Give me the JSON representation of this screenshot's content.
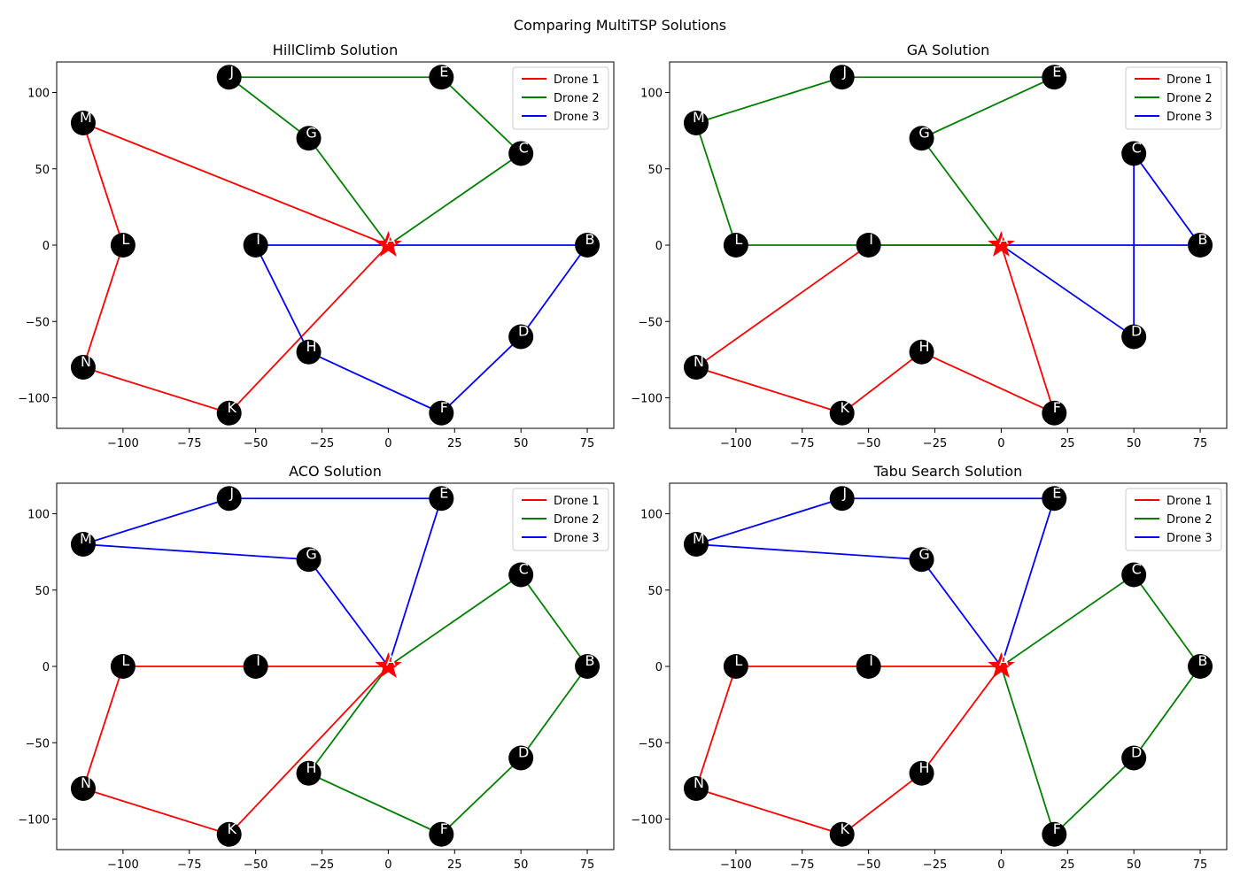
{
  "figure_title": "Comparing MultiTSP Solutions",
  "legend_labels": [
    "Drone 1",
    "Drone 2",
    "Drone 3"
  ],
  "colors": {
    "Drone 1": "#ff0000",
    "Drone 2": "#008000",
    "Drone 3": "#0000ff",
    "node": "#000000",
    "depot": "#ff0000",
    "node_label": "#ffffff"
  },
  "chart_data": [
    {
      "type": "scatter",
      "title": "HillClimb Solution",
      "xlabel": "",
      "ylabel": "",
      "xlim": [
        -125,
        85
      ],
      "ylim": [
        -120,
        120
      ],
      "xticks": [
        -100,
        -75,
        -50,
        -25,
        0,
        25,
        50,
        75
      ],
      "yticks": [
        -100,
        -50,
        0,
        50,
        100
      ],
      "legend_position": "top-right",
      "depot": "A",
      "nodes": [
        {
          "label": "A",
          "x": 0,
          "y": 0
        },
        {
          "label": "B",
          "x": 75,
          "y": 0
        },
        {
          "label": "C",
          "x": 50,
          "y": 60
        },
        {
          "label": "D",
          "x": 50,
          "y": -60
        },
        {
          "label": "E",
          "x": 20,
          "y": 110
        },
        {
          "label": "F",
          "x": 20,
          "y": -110
        },
        {
          "label": "G",
          "x": -30,
          "y": 70
        },
        {
          "label": "H",
          "x": -30,
          "y": -70
        },
        {
          "label": "I",
          "x": -50,
          "y": 0
        },
        {
          "label": "J",
          "x": -60,
          "y": 110
        },
        {
          "label": "K",
          "x": -60,
          "y": -110
        },
        {
          "label": "L",
          "x": -100,
          "y": 0
        },
        {
          "label": "M",
          "x": -115,
          "y": 80
        },
        {
          "label": "N",
          "x": -115,
          "y": -80
        }
      ],
      "routes": [
        {
          "name": "Drone 1",
          "path": [
            "A",
            "M",
            "L",
            "N",
            "K",
            "A"
          ]
        },
        {
          "name": "Drone 2",
          "path": [
            "A",
            "G",
            "J",
            "E",
            "C",
            "A"
          ]
        },
        {
          "name": "Drone 3",
          "path": [
            "A",
            "I",
            "H",
            "F",
            "D",
            "B",
            "A"
          ]
        }
      ]
    },
    {
      "type": "scatter",
      "title": "GA Solution",
      "xlabel": "",
      "ylabel": "",
      "xlim": [
        -125,
        85
      ],
      "ylim": [
        -120,
        120
      ],
      "xticks": [
        -100,
        -75,
        -50,
        -25,
        0,
        25,
        50,
        75
      ],
      "yticks": [
        -100,
        -50,
        0,
        50,
        100
      ],
      "legend_position": "top-right",
      "depot": "A",
      "nodes": [
        {
          "label": "A",
          "x": 0,
          "y": 0
        },
        {
          "label": "B",
          "x": 75,
          "y": 0
        },
        {
          "label": "C",
          "x": 50,
          "y": 60
        },
        {
          "label": "D",
          "x": 50,
          "y": -60
        },
        {
          "label": "E",
          "x": 20,
          "y": 110
        },
        {
          "label": "F",
          "x": 20,
          "y": -110
        },
        {
          "label": "G",
          "x": -30,
          "y": 70
        },
        {
          "label": "H",
          "x": -30,
          "y": -70
        },
        {
          "label": "I",
          "x": -50,
          "y": 0
        },
        {
          "label": "J",
          "x": -60,
          "y": 110
        },
        {
          "label": "K",
          "x": -60,
          "y": -110
        },
        {
          "label": "L",
          "x": -100,
          "y": 0
        },
        {
          "label": "M",
          "x": -115,
          "y": 80
        },
        {
          "label": "N",
          "x": -115,
          "y": -80
        }
      ],
      "routes": [
        {
          "name": "Drone 1",
          "path": [
            "A",
            "I",
            "N",
            "K",
            "H",
            "F",
            "A"
          ]
        },
        {
          "name": "Drone 2",
          "path": [
            "A",
            "G",
            "E",
            "J",
            "M",
            "L",
            "I",
            "A"
          ]
        },
        {
          "name": "Drone 3",
          "path": [
            "A",
            "B",
            "C",
            "D",
            "A"
          ]
        }
      ]
    },
    {
      "type": "scatter",
      "title": "ACO Solution",
      "xlabel": "",
      "ylabel": "",
      "xlim": [
        -125,
        85
      ],
      "ylim": [
        -120,
        120
      ],
      "xticks": [
        -100,
        -75,
        -50,
        -25,
        0,
        25,
        50,
        75
      ],
      "yticks": [
        -100,
        -50,
        0,
        50,
        100
      ],
      "legend_position": "top-right",
      "depot": "A",
      "nodes": [
        {
          "label": "A",
          "x": 0,
          "y": 0
        },
        {
          "label": "B",
          "x": 75,
          "y": 0
        },
        {
          "label": "C",
          "x": 50,
          "y": 60
        },
        {
          "label": "D",
          "x": 50,
          "y": -60
        },
        {
          "label": "E",
          "x": 20,
          "y": 110
        },
        {
          "label": "F",
          "x": 20,
          "y": -110
        },
        {
          "label": "G",
          "x": -30,
          "y": 70
        },
        {
          "label": "H",
          "x": -30,
          "y": -70
        },
        {
          "label": "I",
          "x": -50,
          "y": 0
        },
        {
          "label": "J",
          "x": -60,
          "y": 110
        },
        {
          "label": "K",
          "x": -60,
          "y": -110
        },
        {
          "label": "L",
          "x": -100,
          "y": 0
        },
        {
          "label": "M",
          "x": -115,
          "y": 80
        },
        {
          "label": "N",
          "x": -115,
          "y": -80
        }
      ],
      "routes": [
        {
          "name": "Drone 1",
          "path": [
            "A",
            "I",
            "L",
            "N",
            "K",
            "A"
          ]
        },
        {
          "name": "Drone 2",
          "path": [
            "A",
            "C",
            "B",
            "D",
            "F",
            "H",
            "A"
          ]
        },
        {
          "name": "Drone 3",
          "path": [
            "A",
            "G",
            "M",
            "J",
            "E",
            "A"
          ]
        }
      ]
    },
    {
      "type": "scatter",
      "title": "Tabu Search Solution",
      "xlabel": "",
      "ylabel": "",
      "xlim": [
        -125,
        85
      ],
      "ylim": [
        -120,
        120
      ],
      "xticks": [
        -100,
        -75,
        -50,
        -25,
        0,
        25,
        50,
        75
      ],
      "yticks": [
        -100,
        -50,
        0,
        50,
        100
      ],
      "legend_position": "top-right",
      "depot": "A",
      "nodes": [
        {
          "label": "A",
          "x": 0,
          "y": 0
        },
        {
          "label": "B",
          "x": 75,
          "y": 0
        },
        {
          "label": "C",
          "x": 50,
          "y": 60
        },
        {
          "label": "D",
          "x": 50,
          "y": -60
        },
        {
          "label": "E",
          "x": 20,
          "y": 110
        },
        {
          "label": "F",
          "x": 20,
          "y": -110
        },
        {
          "label": "G",
          "x": -30,
          "y": 70
        },
        {
          "label": "H",
          "x": -30,
          "y": -70
        },
        {
          "label": "I",
          "x": -50,
          "y": 0
        },
        {
          "label": "J",
          "x": -60,
          "y": 110
        },
        {
          "label": "K",
          "x": -60,
          "y": -110
        },
        {
          "label": "L",
          "x": -100,
          "y": 0
        },
        {
          "label": "M",
          "x": -115,
          "y": 80
        },
        {
          "label": "N",
          "x": -115,
          "y": -80
        }
      ],
      "routes": [
        {
          "name": "Drone 1",
          "path": [
            "A",
            "I",
            "L",
            "N",
            "K",
            "H",
            "A"
          ]
        },
        {
          "name": "Drone 2",
          "path": [
            "A",
            "C",
            "B",
            "D",
            "F",
            "A"
          ]
        },
        {
          "name": "Drone 3",
          "path": [
            "A",
            "G",
            "M",
            "J",
            "E",
            "A"
          ]
        }
      ]
    }
  ]
}
